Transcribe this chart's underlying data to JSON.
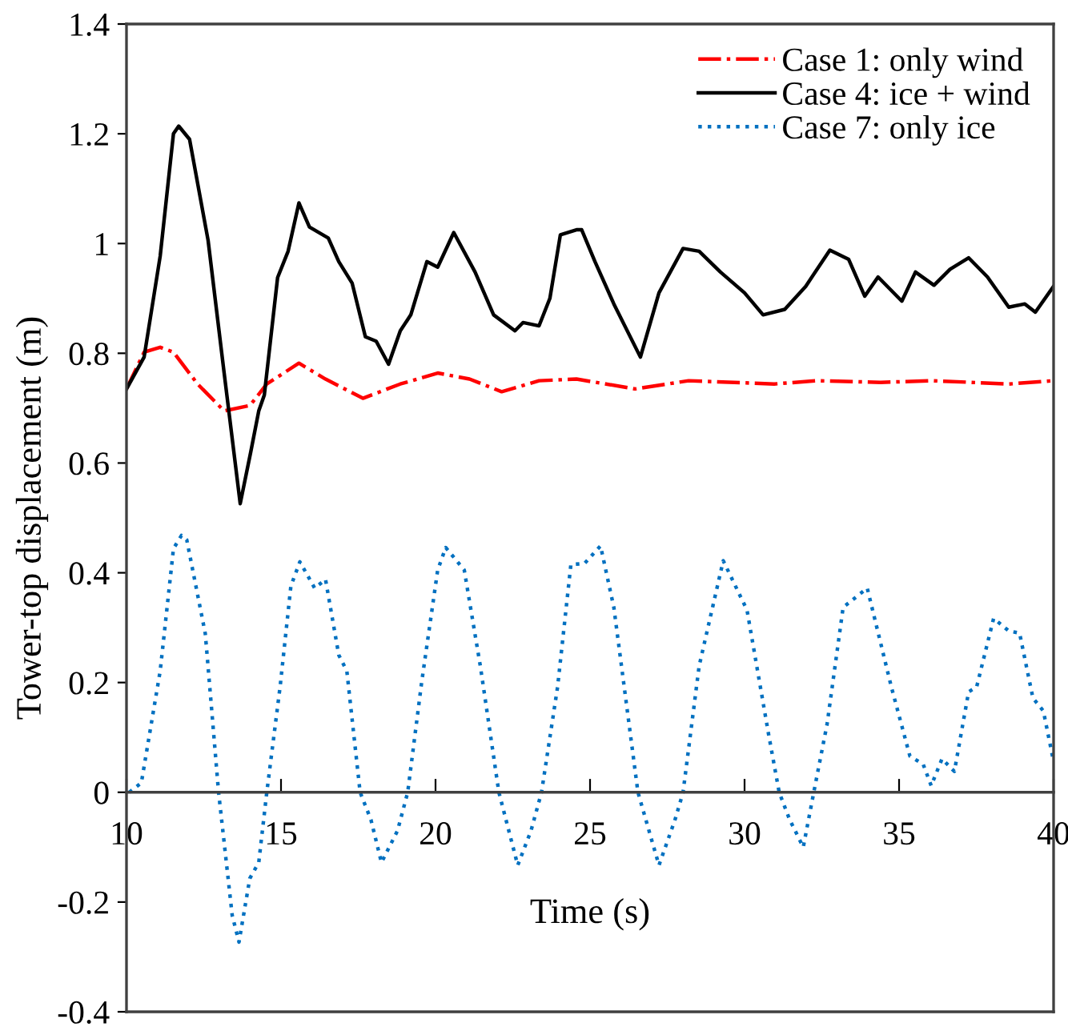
{
  "chart_data": {
    "type": "line",
    "xlabel": "Time (s)",
    "ylabel": "Tower-top displacement (m)",
    "xlim": [
      10,
      40
    ],
    "xticks": [
      10,
      15,
      20,
      25,
      30,
      35,
      40
    ],
    "ylim": [
      -0.4,
      1.4
    ],
    "yticks": [
      -0.4,
      -0.2,
      0,
      0.2,
      0.4,
      0.6,
      0.8,
      1,
      1.2,
      1.4
    ],
    "grid": false,
    "legend": "top right",
    "series": [
      {
        "name": "Case 1: only wind",
        "color": "#ff0000",
        "line_style": "dashdot",
        "x": [
          10.0,
          10.57,
          11.09,
          11.52,
          12.3,
          13.16,
          14.0,
          14.54,
          15.58,
          16.44,
          17.65,
          18.86,
          20.07,
          21.1,
          22.14,
          23.35,
          24.56,
          26.46,
          28.19,
          30.96,
          32.3,
          34.4,
          36.1,
          38.55,
          40.0
        ],
        "values": [
          0.735,
          0.802,
          0.811,
          0.802,
          0.744,
          0.695,
          0.705,
          0.744,
          0.782,
          0.753,
          0.718,
          0.744,
          0.764,
          0.753,
          0.73,
          0.75,
          0.753,
          0.735,
          0.75,
          0.744,
          0.75,
          0.747,
          0.75,
          0.744,
          0.75
        ]
      },
      {
        "name": "Case 4: ice + wind",
        "color": "#000000",
        "line_style": "solid",
        "x": [
          10.0,
          10.57,
          11.09,
          11.52,
          11.69,
          12.04,
          12.64,
          13.16,
          13.68,
          14.02,
          14.28,
          14.46,
          14.89,
          15.23,
          15.58,
          15.92,
          16.53,
          16.87,
          17.3,
          17.73,
          18.08,
          18.48,
          18.86,
          19.2,
          19.72,
          20.07,
          20.59,
          21.28,
          21.88,
          22.57,
          22.83,
          23.35,
          23.7,
          24.04,
          24.56,
          24.73,
          25.16,
          25.77,
          26.63,
          27.23,
          28.01,
          28.53,
          29.22,
          30.0,
          30.6,
          31.3,
          31.98,
          32.76,
          33.37,
          33.89,
          34.32,
          35.09,
          35.53,
          36.13,
          36.65,
          37.25,
          37.86,
          38.55,
          39.07,
          39.41,
          40.0
        ],
        "values": [
          0.735,
          0.793,
          0.977,
          1.2,
          1.214,
          1.19,
          1.006,
          0.764,
          0.526,
          0.62,
          0.695,
          0.724,
          0.938,
          0.986,
          1.074,
          1.03,
          1.01,
          0.967,
          0.928,
          0.83,
          0.822,
          0.78,
          0.841,
          0.87,
          0.967,
          0.957,
          1.02,
          0.948,
          0.87,
          0.841,
          0.856,
          0.85,
          0.9,
          1.016,
          1.025,
          1.025,
          0.967,
          0.89,
          0.793,
          0.91,
          0.991,
          0.986,
          0.948,
          0.91,
          0.87,
          0.88,
          0.922,
          0.988,
          0.971,
          0.904,
          0.939,
          0.895,
          0.948,
          0.924,
          0.953,
          0.974,
          0.939,
          0.884,
          0.89,
          0.875,
          0.922
        ]
      },
      {
        "name": "Case 7: only ice",
        "color": "#0070c0",
        "line_style": "dotted",
        "x": [
          10.09,
          10.48,
          11.09,
          11.52,
          11.78,
          11.95,
          12.55,
          12.98,
          13.42,
          13.64,
          13.99,
          14.28,
          14.54,
          14.97,
          15.32,
          15.61,
          16.09,
          16.44,
          16.87,
          17.13,
          17.56,
          17.91,
          18.25,
          18.77,
          19.1,
          19.55,
          20.07,
          20.33,
          20.93,
          21.45,
          22.05,
          22.66,
          23.09,
          23.43,
          23.95,
          24.38,
          24.82,
          25.34,
          25.77,
          26.55,
          27.23,
          27.75,
          28.01,
          28.53,
          29.31,
          30.08,
          30.78,
          31.12,
          31.46,
          31.9,
          32.24,
          32.67,
          33.19,
          33.97,
          34.75,
          35.35,
          35.78,
          36.04,
          36.39,
          36.79,
          37.25,
          37.51,
          38.06,
          38.55,
          38.9,
          39.33,
          39.67,
          40.0
        ],
        "values": [
          0.0,
          0.017,
          0.221,
          0.444,
          0.468,
          0.46,
          0.289,
          0.0,
          -0.224,
          -0.273,
          -0.157,
          -0.128,
          0.0,
          0.192,
          0.376,
          0.42,
          0.372,
          0.388,
          0.25,
          0.221,
          0.0,
          -0.05,
          -0.128,
          -0.07,
          0.0,
          0.2,
          0.405,
          0.446,
          0.405,
          0.23,
          0.0,
          -0.133,
          -0.07,
          0.0,
          0.192,
          0.415,
          0.417,
          0.449,
          0.337,
          0.0,
          -0.133,
          -0.05,
          0.0,
          0.23,
          0.422,
          0.332,
          0.105,
          0.0,
          -0.05,
          -0.1,
          0.0,
          0.124,
          0.337,
          0.372,
          0.192,
          0.066,
          0.051,
          0.012,
          0.061,
          0.038,
          0.183,
          0.192,
          0.317,
          0.294,
          0.29,
          0.172,
          0.148,
          0.056
        ]
      }
    ]
  }
}
